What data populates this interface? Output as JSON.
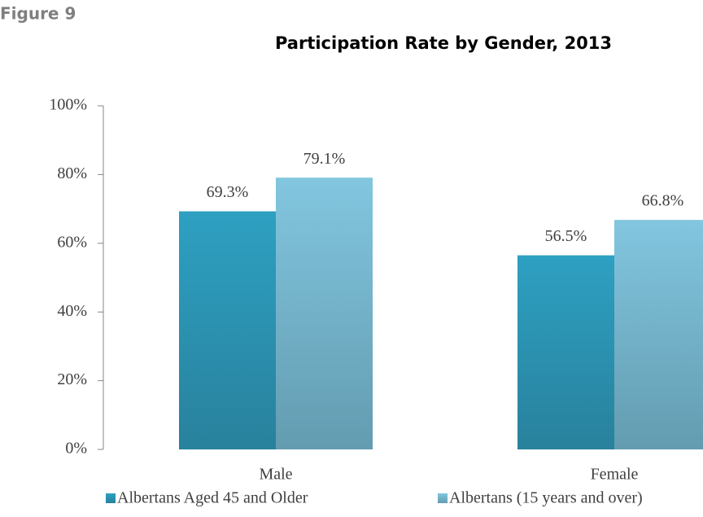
{
  "chart_data": {
    "type": "bar",
    "figure_label": "Figure 9",
    "title": "Participation Rate by Gender, 2013",
    "categories": [
      "Male",
      "Female"
    ],
    "series": [
      {
        "name": "Albertans Aged 45 and Older",
        "color": "#2ea0c2",
        "values": [
          69.3,
          56.5
        ],
        "value_labels": [
          "69.3%",
          "56.5%"
        ]
      },
      {
        "name": "Albertans (15 years and over)",
        "color": "#82c6df",
        "values": [
          79.1,
          66.8
        ],
        "value_labels": [
          "79.1%",
          "66.8%"
        ]
      }
    ],
    "ylim": [
      0,
      100
    ],
    "yticks": [
      {
        "value": 0,
        "label": "0%"
      },
      {
        "value": 20,
        "label": "20%"
      },
      {
        "value": 40,
        "label": "40%"
      },
      {
        "value": 60,
        "label": "60%"
      },
      {
        "value": 80,
        "label": "80%"
      },
      {
        "value": 100,
        "label": "100%"
      }
    ],
    "legend": "bottom"
  }
}
